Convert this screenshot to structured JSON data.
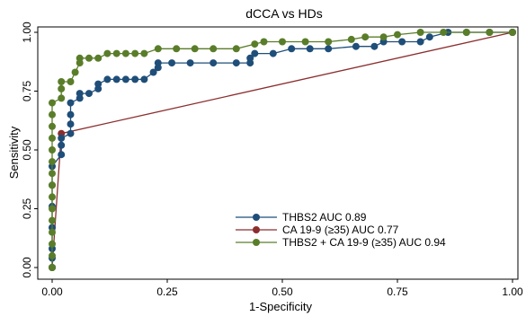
{
  "chart_data": {
    "type": "line",
    "title": "dCCA vs HDs",
    "xlabel": "1-Specificity",
    "ylabel": "Sensitivity",
    "xlim": [
      0,
      1
    ],
    "ylim": [
      0,
      1
    ],
    "xticks": [
      0,
      0.25,
      0.5,
      0.75,
      1
    ],
    "xtick_labels": [
      "0.00",
      "0.25",
      "0.50",
      "0.75",
      "1.00"
    ],
    "yticks": [
      0,
      0.25,
      0.5,
      0.75,
      1
    ],
    "ytick_labels": [
      "0.00",
      "0.25",
      "0.50",
      "0.75",
      "1.00"
    ],
    "grid": false,
    "legend_position": "bottom-right",
    "series": [
      {
        "name": "THBS2 AUC 0.89",
        "color": "#1f4e79",
        "marker": "circle",
        "points": [
          [
            0,
            0
          ],
          [
            0,
            0.04
          ],
          [
            0,
            0.08
          ],
          [
            0,
            0.17
          ],
          [
            0,
            0.26
          ],
          [
            0,
            0.35
          ],
          [
            0,
            0.43
          ],
          [
            0.02,
            0.48
          ],
          [
            0.02,
            0.52
          ],
          [
            0.02,
            0.55
          ],
          [
            0.04,
            0.57
          ],
          [
            0.04,
            0.61
          ],
          [
            0.04,
            0.65
          ],
          [
            0.04,
            0.7
          ],
          [
            0.06,
            0.72
          ],
          [
            0.06,
            0.74
          ],
          [
            0.08,
            0.74
          ],
          [
            0.1,
            0.76
          ],
          [
            0.1,
            0.78
          ],
          [
            0.12,
            0.8
          ],
          [
            0.14,
            0.8
          ],
          [
            0.16,
            0.8
          ],
          [
            0.18,
            0.8
          ],
          [
            0.2,
            0.8
          ],
          [
            0.22,
            0.83
          ],
          [
            0.23,
            0.85
          ],
          [
            0.23,
            0.87
          ],
          [
            0.26,
            0.87
          ],
          [
            0.3,
            0.87
          ],
          [
            0.35,
            0.87
          ],
          [
            0.4,
            0.87
          ],
          [
            0.43,
            0.87
          ],
          [
            0.43,
            0.89
          ],
          [
            0.44,
            0.91
          ],
          [
            0.48,
            0.91
          ],
          [
            0.52,
            0.93
          ],
          [
            0.56,
            0.93
          ],
          [
            0.6,
            0.93
          ],
          [
            0.66,
            0.94
          ],
          [
            0.7,
            0.94
          ],
          [
            0.72,
            0.96
          ],
          [
            0.76,
            0.96
          ],
          [
            0.8,
            0.96
          ],
          [
            0.82,
            0.98
          ],
          [
            0.86,
            1
          ],
          [
            0.9,
            1
          ],
          [
            0.95,
            1
          ],
          [
            1,
            1
          ]
        ]
      },
      {
        "name": "CA 19-9 (≥35) AUC 0.77",
        "color": "#8b2e2e",
        "marker": "circle",
        "points": [
          [
            0,
            0
          ],
          [
            0.02,
            0.57
          ],
          [
            1,
            1
          ]
        ]
      },
      {
        "name": "THBS2 + CA 19-9 (≥35) AUC 0.94",
        "color": "#5a7d2a",
        "marker": "circle",
        "points": [
          [
            0,
            0
          ],
          [
            0,
            0.05
          ],
          [
            0,
            0.1
          ],
          [
            0,
            0.15
          ],
          [
            0,
            0.2
          ],
          [
            0,
            0.25
          ],
          [
            0,
            0.3
          ],
          [
            0,
            0.35
          ],
          [
            0,
            0.4
          ],
          [
            0,
            0.45
          ],
          [
            0,
            0.5
          ],
          [
            0,
            0.55
          ],
          [
            0,
            0.6
          ],
          [
            0,
            0.65
          ],
          [
            0,
            0.7
          ],
          [
            0.02,
            0.72
          ],
          [
            0.02,
            0.76
          ],
          [
            0.02,
            0.79
          ],
          [
            0.04,
            0.79
          ],
          [
            0.05,
            0.83
          ],
          [
            0.06,
            0.87
          ],
          [
            0.06,
            0.89
          ],
          [
            0.08,
            0.89
          ],
          [
            0.1,
            0.89
          ],
          [
            0.12,
            0.91
          ],
          [
            0.14,
            0.91
          ],
          [
            0.16,
            0.91
          ],
          [
            0.18,
            0.91
          ],
          [
            0.2,
            0.91
          ],
          [
            0.23,
            0.93
          ],
          [
            0.27,
            0.93
          ],
          [
            0.31,
            0.93
          ],
          [
            0.35,
            0.93
          ],
          [
            0.4,
            0.93
          ],
          [
            0.44,
            0.95
          ],
          [
            0.46,
            0.96
          ],
          [
            0.5,
            0.96
          ],
          [
            0.55,
            0.96
          ],
          [
            0.6,
            0.96
          ],
          [
            0.65,
            0.97
          ],
          [
            0.68,
            0.98
          ],
          [
            0.72,
            0.98
          ],
          [
            0.75,
            0.99
          ],
          [
            0.8,
            1
          ],
          [
            0.85,
            1
          ],
          [
            0.9,
            1
          ],
          [
            0.95,
            1
          ],
          [
            1,
            1
          ]
        ]
      }
    ]
  }
}
